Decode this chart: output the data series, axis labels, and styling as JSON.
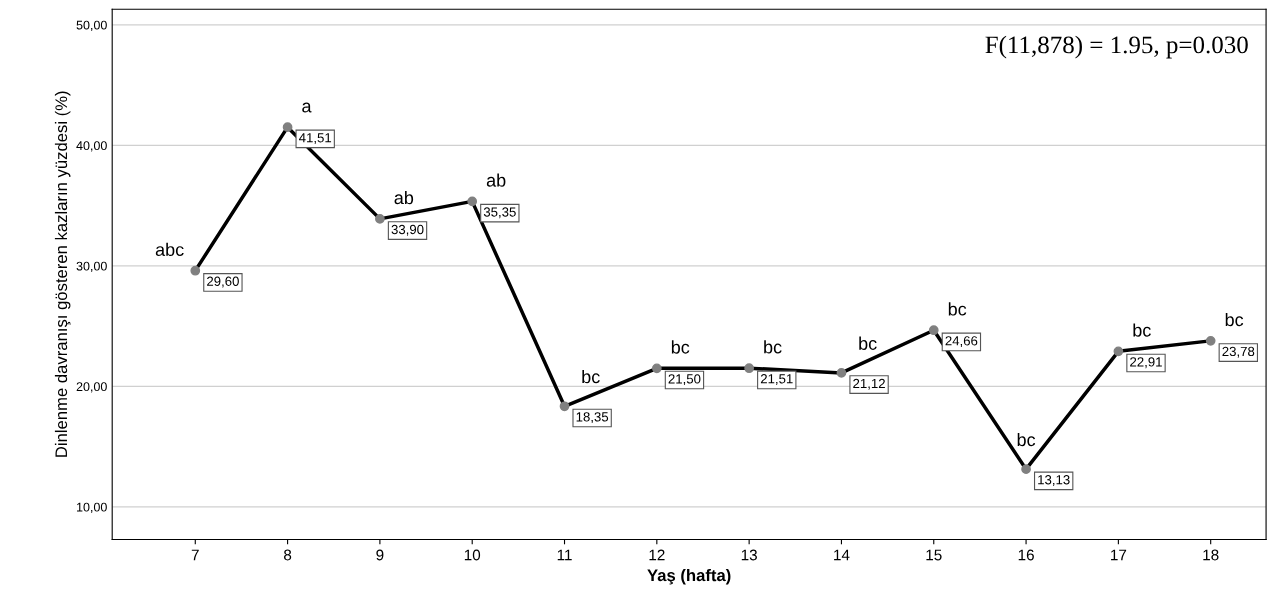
{
  "chart_data": {
    "type": "line",
    "xlabel": "Yaş (hafta)",
    "ylabel": "Dinlenme davranışı gösteren kazların yüzdesi (%)",
    "categories": [
      "7",
      "8",
      "9",
      "10",
      "11",
      "12",
      "13",
      "14",
      "15",
      "16",
      "17",
      "18"
    ],
    "series": [
      {
        "color": "#000000",
        "values": [
          29.6,
          41.51,
          33.9,
          35.35,
          18.35,
          21.5,
          21.51,
          21.12,
          24.66,
          13.13,
          22.91,
          23.78
        ],
        "value_labels": [
          "29,60",
          "41,51",
          "33,90",
          "35,35",
          "18,35",
          "21,50",
          "21,51",
          "21,12",
          "24,66",
          "13,13",
          "22,91",
          "23,78"
        ]
      }
    ],
    "ylim": [
      7.3,
      51.3
    ],
    "yticks": [
      {
        "value": 10,
        "label": "10,00"
      },
      {
        "value": 20,
        "label": "20,00"
      },
      {
        "value": 30,
        "label": "30,00"
      },
      {
        "value": 40,
        "label": "40,00"
      },
      {
        "value": 50,
        "label": "50,00"
      }
    ],
    "grid": "y",
    "marker": "circle",
    "line_style": "solid",
    "annotations": [
      "F(11,878) = 1.95, p=0.030",
      {
        "text": "abc",
        "x": "7",
        "y": 29.6
      },
      {
        "text": "a",
        "x": "8",
        "y": 41.51
      },
      {
        "text": "ab",
        "x": "9",
        "y": 33.9
      },
      {
        "text": "ab",
        "x": "10",
        "y": 35.35
      },
      {
        "text": "bc",
        "x": "11",
        "y": 18.35
      },
      {
        "text": "bc",
        "x": "12",
        "y": 21.5
      },
      {
        "text": "bc",
        "x": "13",
        "y": 21.51
      },
      {
        "text": "bc",
        "x": "14",
        "y": 21.12
      },
      {
        "text": "bc",
        "x": "15",
        "y": 24.66
      },
      {
        "text": "bc",
        "x": "16",
        "y": 13.13
      },
      {
        "text": "bc",
        "x": "17",
        "y": 22.91
      },
      {
        "text": "bc",
        "x": "18",
        "y": 23.78
      }
    ]
  }
}
